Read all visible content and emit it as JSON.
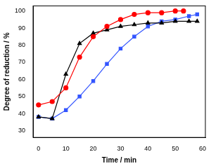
{
  "chart_data": {
    "type": "line",
    "x_label": "Time / min",
    "y_label": "Degree of reduction / %",
    "xlim": [
      -2,
      61
    ],
    "xticks": [
      0,
      10,
      20,
      30,
      40,
      50,
      60
    ],
    "ylim": [
      26,
      103
    ],
    "yticks": [
      30,
      40,
      50,
      60,
      70,
      80,
      90,
      100
    ],
    "grid": false,
    "series": [
      {
        "color": "#ff0000",
        "marker": "circle",
        "x": [
          0,
          5,
          10,
          15,
          20,
          25,
          30,
          35,
          40,
          45,
          50,
          53
        ],
        "values": [
          45,
          47,
          55,
          73,
          85,
          91,
          95,
          98,
          99,
          99,
          100,
          100
        ]
      },
      {
        "color": "#000000",
        "marker": "triangle",
        "x": [
          0,
          5,
          10,
          15,
          20,
          25,
          30,
          35,
          40,
          45,
          50,
          55,
          58
        ],
        "values": [
          38,
          37,
          63,
          81,
          87,
          89,
          91,
          92,
          93,
          93,
          94,
          94,
          94
        ]
      },
      {
        "color": "#3355ff",
        "marker": "square",
        "x": [
          0,
          5,
          10,
          15,
          20,
          25,
          30,
          35,
          40,
          45,
          50,
          55,
          58
        ],
        "values": [
          38,
          37,
          42,
          50,
          59,
          69,
          78,
          85,
          91,
          94,
          95,
          97,
          98
        ]
      }
    ]
  }
}
